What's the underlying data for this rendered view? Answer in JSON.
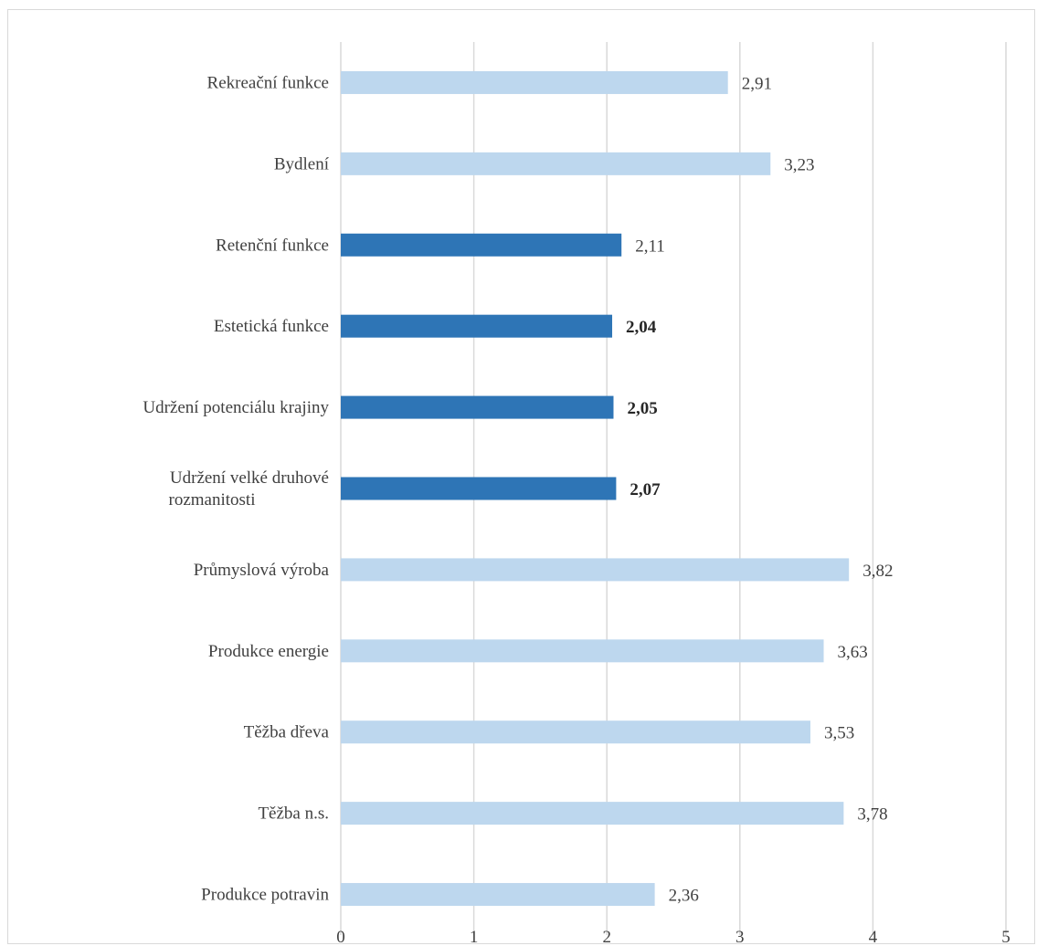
{
  "chart_data": {
    "type": "bar",
    "orientation": "horizontal",
    "categories": [
      "Rekreační funkce",
      "Bydlení",
      "Retenční funkce",
      "Estetická funkce",
      "Udržení potenciálu krajiny",
      "Udržení velké druhové rozmanitosti",
      "Průmyslová výroba",
      "Produkce energie",
      "Těžba dřeva",
      "Těžba n.s.",
      "Produkce potravin"
    ],
    "category_lines": [
      [
        "Rekreační funkce"
      ],
      [
        "Bydlení"
      ],
      [
        "Retenční funkce"
      ],
      [
        "Estetická funkce"
      ],
      [
        "Udržení potenciálu krajiny"
      ],
      [
        "Udržení velké druhové",
        "rozmanitosti"
      ],
      [
        "Průmyslová výroba"
      ],
      [
        "Produkce energie"
      ],
      [
        "Těžba dřeva"
      ],
      [
        "Těžba n.s."
      ],
      [
        "Produkce potravin"
      ]
    ],
    "values": [
      2.91,
      3.23,
      2.11,
      2.04,
      2.05,
      2.07,
      3.82,
      3.63,
      3.53,
      3.78,
      2.36
    ],
    "value_labels": [
      "2,91",
      "3,23",
      "2,11",
      "2,04",
      "2,05",
      "2,07",
      "3,82",
      "3,63",
      "3,53",
      "3,78",
      "2,36"
    ],
    "highlighted": [
      false,
      false,
      true,
      true,
      true,
      true,
      false,
      false,
      false,
      false,
      false
    ],
    "bold_labels": [
      false,
      false,
      false,
      true,
      true,
      true,
      false,
      false,
      false,
      false,
      false
    ],
    "colors": {
      "light": "#bdd7ee",
      "dark": "#2e75b6",
      "grid": "#d9d9d9"
    },
    "xlim": [
      0,
      5
    ],
    "x_ticks": [
      0,
      1,
      2,
      3,
      4,
      5
    ],
    "x_tick_labels": [
      "0",
      "1",
      "2",
      "3",
      "4",
      "5"
    ],
    "grid": true,
    "title": "",
    "xlabel": "",
    "ylabel": ""
  }
}
